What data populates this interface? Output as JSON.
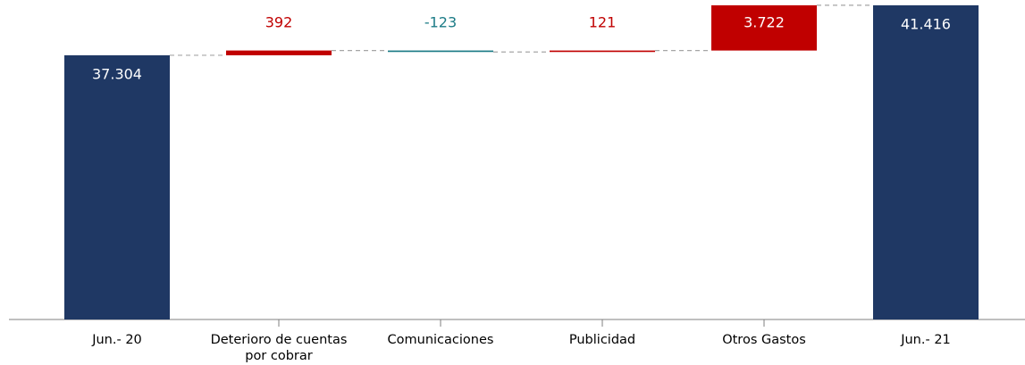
{
  "chart_data": {
    "type": "waterfall",
    "categories": [
      "Jun.- 20",
      "Deterioro de cuentas por cobrar",
      "Comunicaciones",
      "Publicidad",
      "Otros Gastos",
      "Jun.- 21"
    ],
    "values": [
      37304,
      392,
      -123,
      121,
      3722,
      41416
    ],
    "value_labels": [
      "37.304",
      "392",
      "-123",
      "121",
      "3.722",
      "41.416"
    ],
    "is_total": [
      true,
      false,
      false,
      false,
      false,
      true
    ],
    "colors": {
      "total": "#1f3864",
      "increase": "#c00000",
      "decrease": "#1b7b86"
    },
    "ylim": [
      15570,
      41850
    ]
  }
}
